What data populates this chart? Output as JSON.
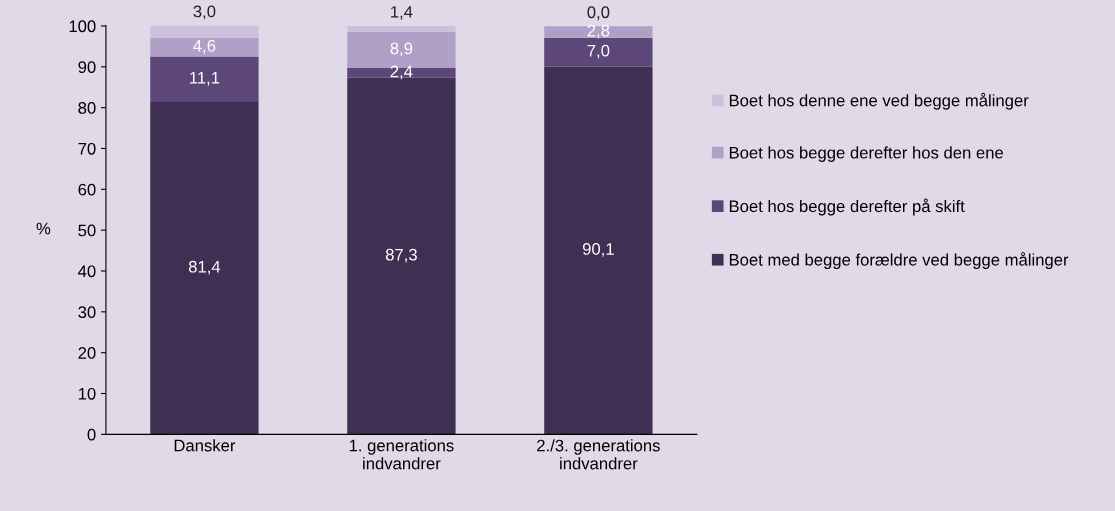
{
  "chart_data": {
    "type": "bar",
    "stacked": true,
    "ylabel": "%",
    "categories": [
      "Dansker",
      "1. generations\nindvandrer",
      "2./3. generations\nindvandrer"
    ],
    "series": [
      {
        "name": "Boet med begge forældre ved begge målinger",
        "color": "#3f2f52",
        "values": [
          81.4,
          87.3,
          90.1
        ],
        "value_labels": [
          "81,4",
          "87,3",
          "90,1"
        ]
      },
      {
        "name": "Boet hos begge derefter på skift",
        "color": "#5c4778",
        "values": [
          11.1,
          2.4,
          7.0
        ],
        "value_labels": [
          "11,1",
          "2,4",
          "7,0"
        ]
      },
      {
        "name": "Boet hos begge derefter hos den ene",
        "color": "#b0a0c8",
        "values": [
          4.6,
          8.9,
          2.8
        ],
        "value_labels": [
          "4,6",
          "8,9",
          "2,8"
        ]
      },
      {
        "name": "Boet hos denne ene ved begge målinger",
        "color": "#cdc0dc",
        "values": [
          3.0,
          1.4,
          0.0
        ],
        "value_labels": [
          "3,0",
          "1,4",
          "0,0"
        ]
      }
    ],
    "ylim": [
      0,
      100.1
    ],
    "yticks": [
      0,
      10,
      20,
      30,
      40,
      50,
      60,
      70,
      80,
      90,
      100
    ],
    "legend": "right",
    "grid": false
  }
}
